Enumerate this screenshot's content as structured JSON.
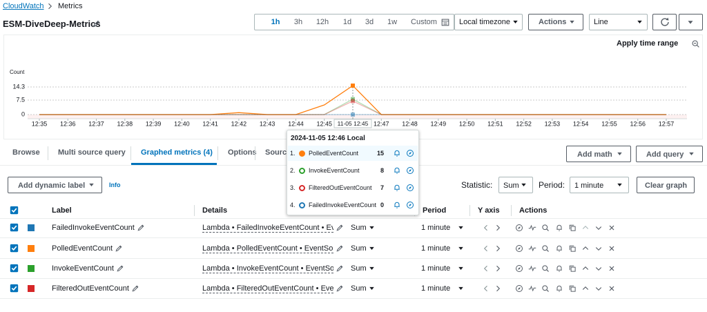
{
  "breadcrumb": [
    "CloudWatch",
    "Metrics"
  ],
  "title": "ESM-DiveDeep-Metrics",
  "time_ranges": [
    "1h",
    "3h",
    "12h",
    "1d",
    "3d",
    "1w",
    "Custom"
  ],
  "active_time_range": 0,
  "timezone": "Local timezone",
  "actions": "Actions",
  "view": "Line",
  "apply_time_range": "Apply time range",
  "chart_data": {
    "type": "line",
    "y_label": "Count",
    "x": [
      "12:35",
      "12:36",
      "12:37",
      "12:38",
      "12:39",
      "12:40",
      "12:41",
      "12:42",
      "12:43",
      "12:44",
      "12:45",
      null,
      "12:47",
      "12:48",
      "12:49",
      "12:50",
      "12:51",
      "12:52",
      "12:53",
      "12:54",
      "12:55",
      "12:56",
      "12:57"
    ],
    "series": [
      {
        "name": "FailedInvokeEventCount",
        "color": "#1f77b4",
        "values": [
          0,
          0,
          0,
          0,
          0,
          0,
          0,
          0,
          0,
          0,
          0,
          0,
          0,
          0,
          0,
          0,
          0,
          0,
          0,
          0,
          0,
          0,
          0
        ]
      },
      {
        "name": "PolledEventCount",
        "color": "#ff7f0e",
        "values": [
          0,
          0,
          0,
          0,
          0,
          0,
          0,
          1,
          0,
          0,
          5,
          15,
          0,
          0,
          0,
          0,
          0,
          0,
          0,
          0,
          0,
          0,
          0
        ]
      },
      {
        "name": "InvokeEventCount",
        "color": "#2ca02c",
        "values": [
          0,
          0,
          0,
          0,
          0,
          0,
          0,
          0,
          0,
          0,
          0,
          8,
          0,
          0,
          0,
          0,
          0,
          0,
          0,
          0,
          0,
          0,
          0
        ]
      },
      {
        "name": "FilteredOutEventCount",
        "color": "#d62728",
        "values": [
          0,
          0,
          0,
          0,
          0,
          0,
          0,
          0,
          0,
          0,
          0,
          7,
          0,
          0,
          0,
          0,
          0,
          0,
          0,
          0,
          0,
          0,
          0
        ]
      }
    ],
    "ylim": [
      0,
      14.3
    ],
    "yticks": [
      0,
      7.5,
      14.3
    ],
    "grid": true,
    "crosshair_label": "11-05 12:45"
  },
  "tooltip": {
    "title": "2024-11-05 12:46 Local",
    "rows": [
      {
        "index": "1.",
        "name": "PolledEventCount",
        "value": 15,
        "color": "#ff7f0e"
      },
      {
        "index": "2.",
        "name": "InvokeEventCount",
        "value": 8,
        "color": "#2ca02c"
      },
      {
        "index": "3.",
        "name": "FilteredOutEventCount",
        "value": 7,
        "color": "#d62728"
      },
      {
        "index": "4.",
        "name": "FailedInvokeEventCount",
        "value": 0,
        "color": "#1f77b4"
      }
    ]
  },
  "tabs": [
    "Browse",
    "Multi source query",
    "Graphed metrics (4)",
    "Options",
    "Source"
  ],
  "active_tab": 2,
  "add_math": "Add math",
  "add_query": "Add query",
  "add_dynamic_label": "Add dynamic label",
  "info": "Info",
  "statistic_label": "Statistic:",
  "statistic": "Sum",
  "period_label": "Period:",
  "period": "1 minute",
  "clear_graph": "Clear graph",
  "table": {
    "headers": [
      "Label",
      "Details",
      "Period",
      "Y axis",
      "Actions"
    ],
    "rows": [
      {
        "details": "Lambda • FailedInvokeEventCount • EventSourceMappingUUID",
        "statistic": "Sum",
        "period": "1 minute"
      },
      {
        "details": "Lambda • PolledEventCount • EventSourceMappingUUID",
        "statistic": "Sum",
        "period": "1 minute"
      },
      {
        "details": "Lambda • InvokeEventCount • EventSourceMappingUUID",
        "statistic": "Sum",
        "period": "1 minute"
      },
      {
        "details": "Lambda • FilteredOutEventCount • EventSourceMappingUUID",
        "statistic": "Sum",
        "period": "1 minute"
      }
    ]
  }
}
